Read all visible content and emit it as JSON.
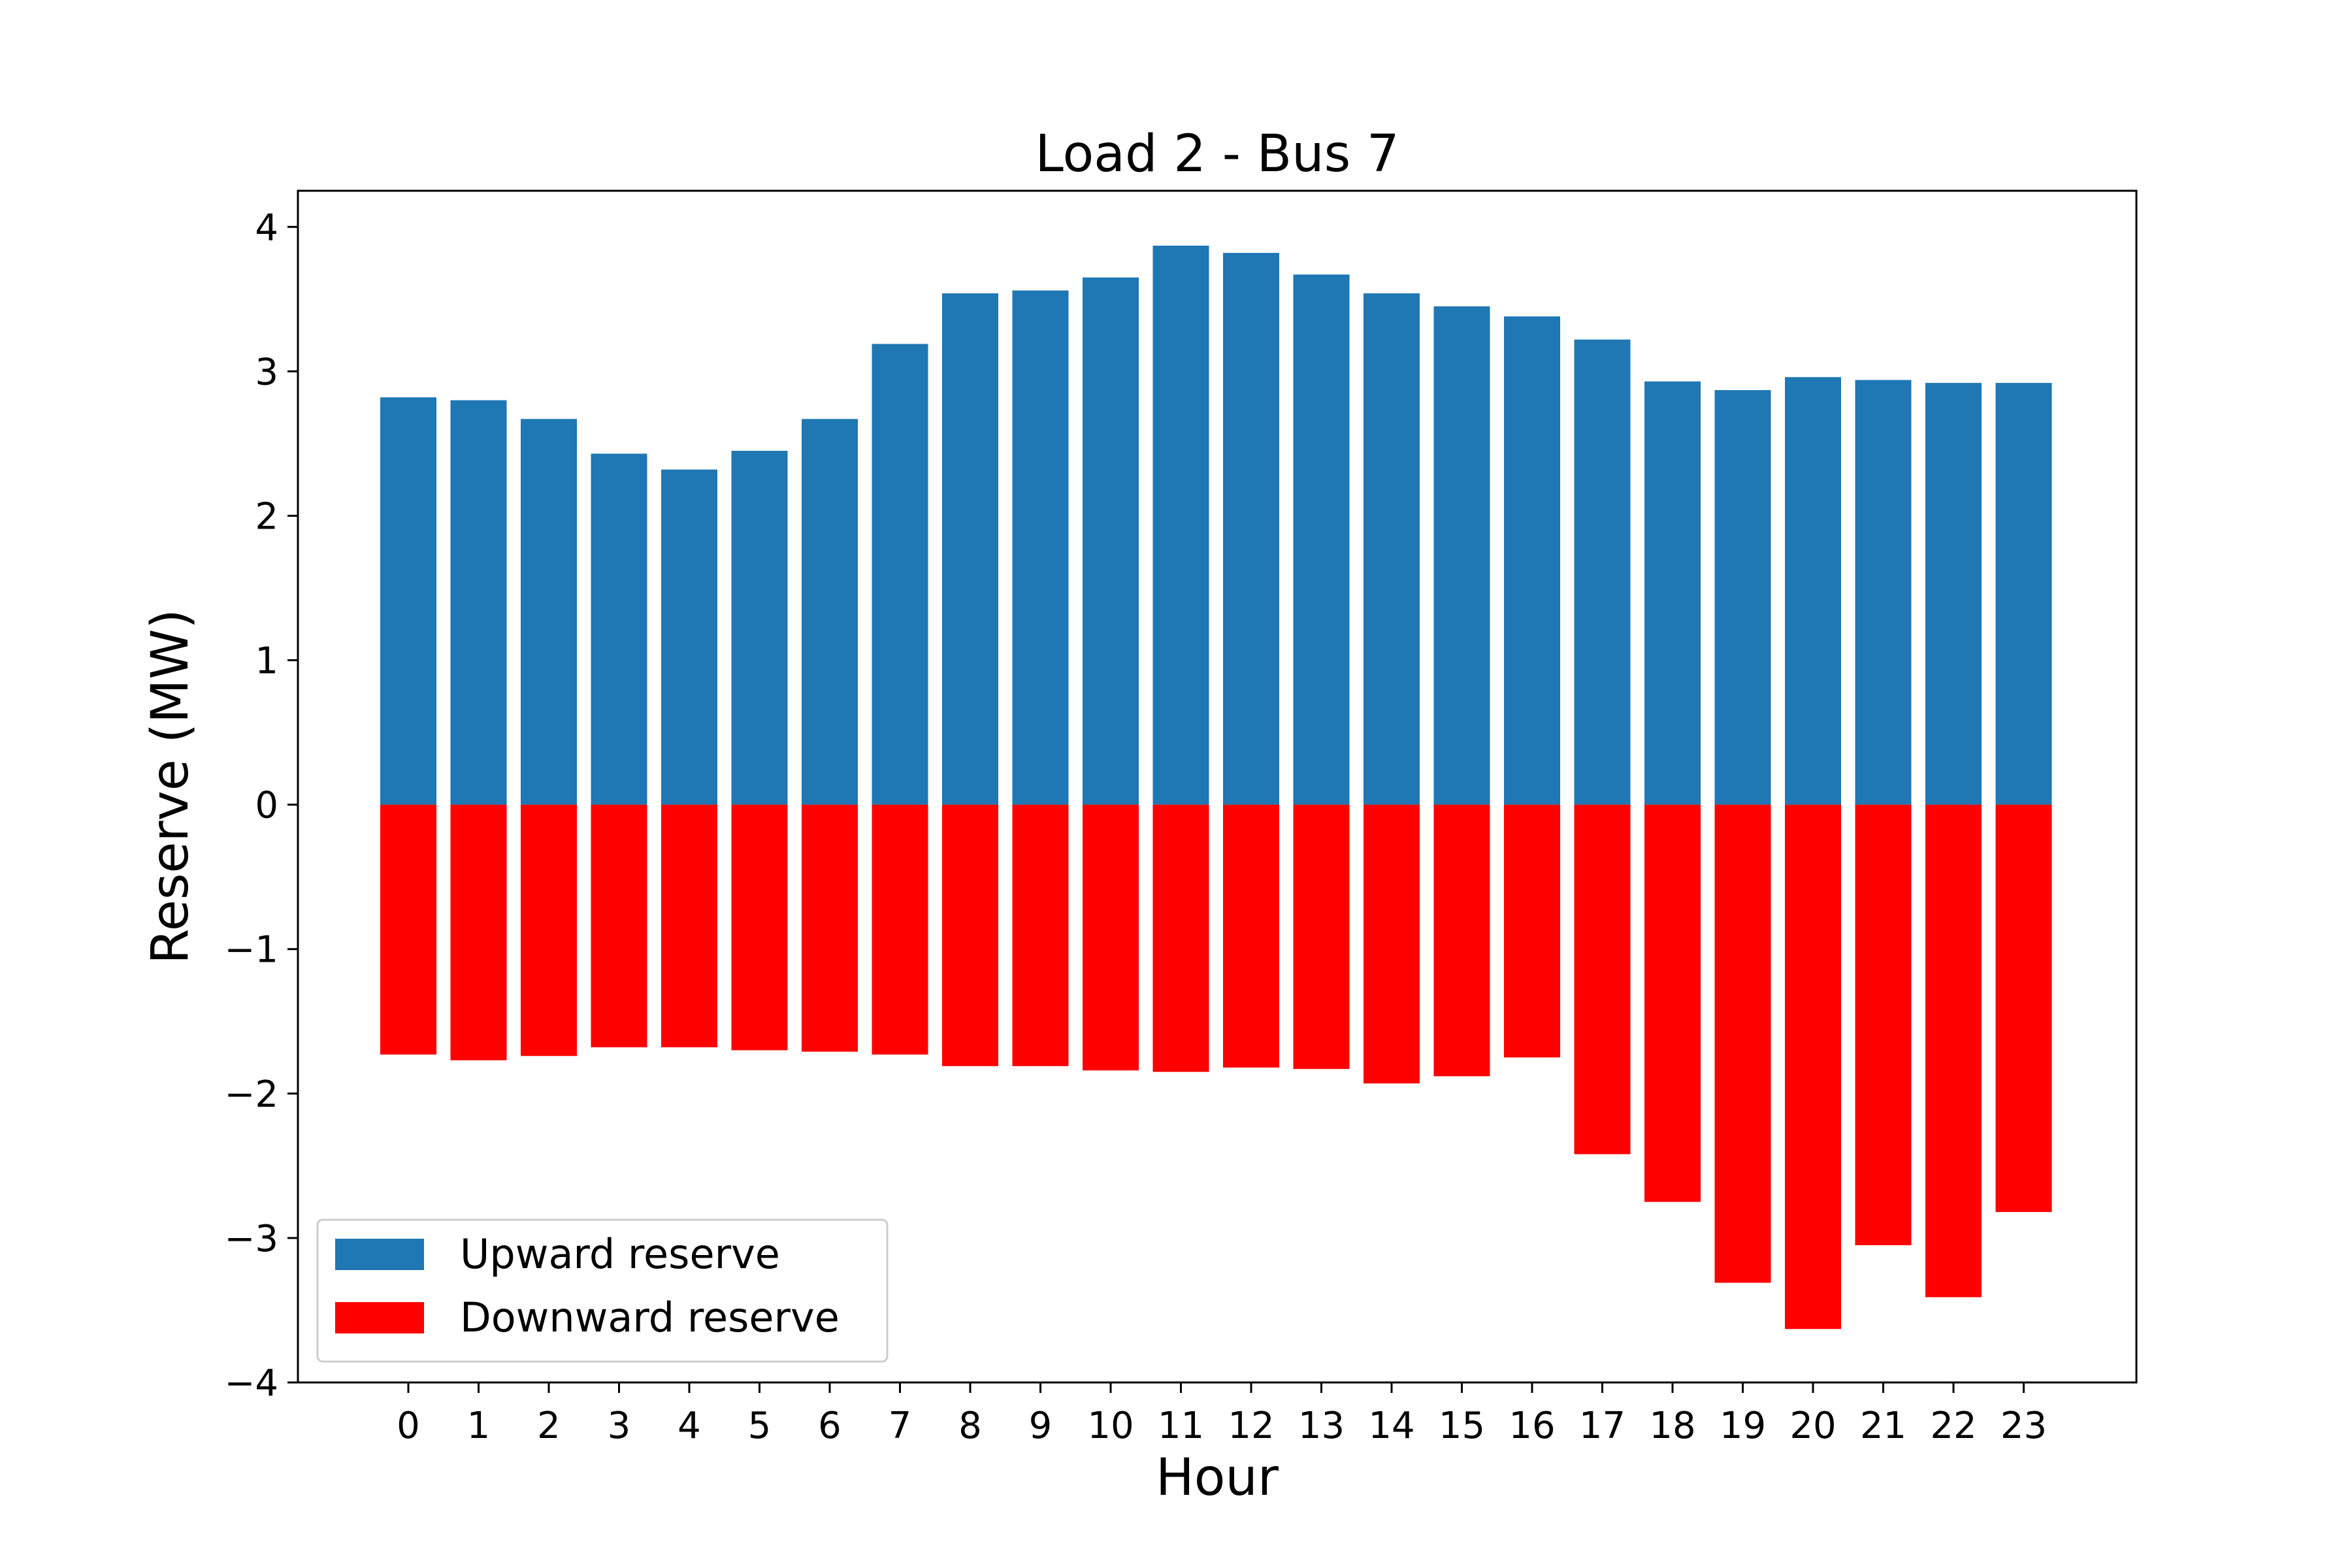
{
  "chart_data": {
    "type": "bar",
    "title": "Load 2 - Bus 7",
    "xlabel": "Hour",
    "ylabel": "Reserve (MW)",
    "categories": [
      "0",
      "1",
      "2",
      "3",
      "4",
      "5",
      "6",
      "7",
      "8",
      "9",
      "10",
      "11",
      "12",
      "13",
      "14",
      "15",
      "16",
      "17",
      "18",
      "19",
      "20",
      "21",
      "22",
      "23"
    ],
    "yticks": [
      4,
      3,
      2,
      1,
      0,
      -1,
      -2,
      -3,
      -4
    ],
    "ytick_labels": [
      "4",
      "3",
      "2",
      "1",
      "0",
      "−1",
      "−2",
      "−3",
      "−4"
    ],
    "ylim": [
      -4,
      4.25
    ],
    "grid": false,
    "legend_position": "lower-left",
    "series": [
      {
        "name": "Upward reserve",
        "color": "#1f77b4",
        "values": [
          2.82,
          2.8,
          2.67,
          2.43,
          2.32,
          2.45,
          2.67,
          3.19,
          3.54,
          3.56,
          3.65,
          3.87,
          3.82,
          3.67,
          3.54,
          3.45,
          3.38,
          3.22,
          2.93,
          2.87,
          2.96,
          2.94,
          2.92,
          2.92
        ]
      },
      {
        "name": "Downward reserve",
        "color": "#ff0000",
        "values": [
          -1.73,
          -1.77,
          -1.74,
          -1.68,
          -1.68,
          -1.7,
          -1.71,
          -1.73,
          -1.81,
          -1.81,
          -1.84,
          -1.85,
          -1.82,
          -1.83,
          -1.93,
          -1.88,
          -1.75,
          -2.42,
          -2.75,
          -3.31,
          -3.63,
          -3.05,
          -3.41,
          -2.82
        ]
      }
    ]
  }
}
